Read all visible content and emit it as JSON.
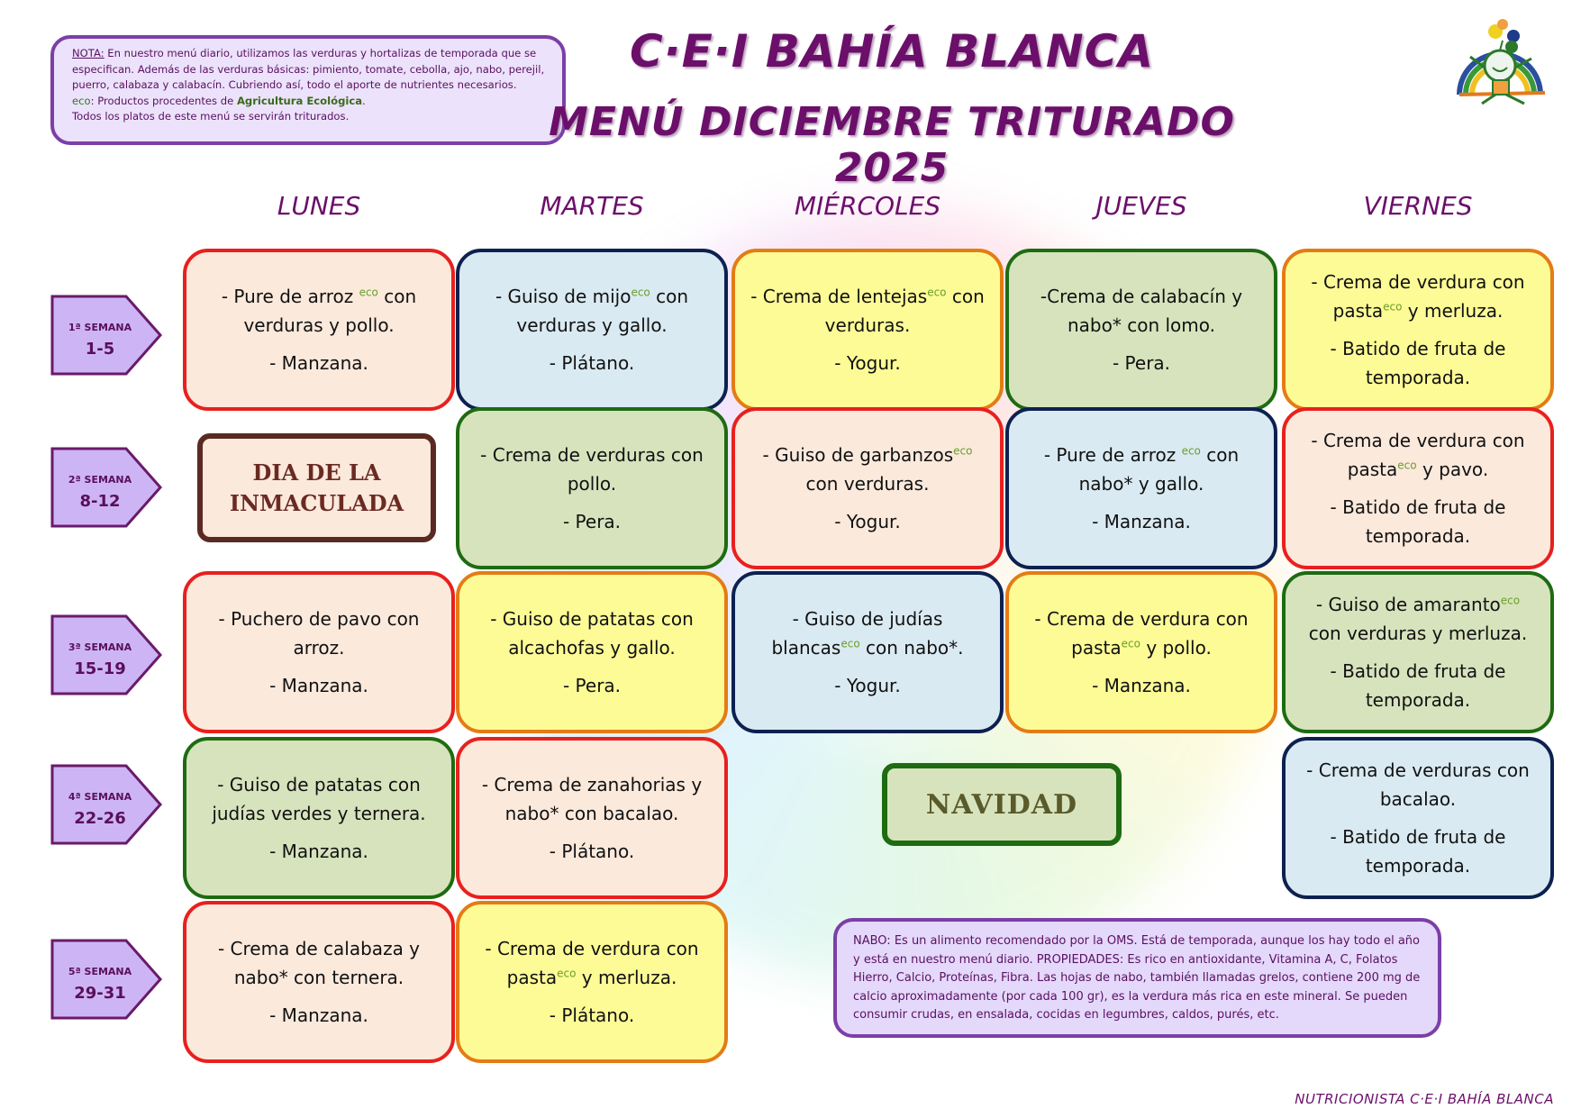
{
  "title": "C·E·I BAHÍA BLANCA",
  "subtitle": "MENÚ DICIEMBRE TRITURADO 2025",
  "note": {
    "label": "NOTA:",
    "text": " En nuestro menú diario, utilizamos las verduras y hortalizas de temporada que se especifican. Además de las verduras básicas: pimiento, tomate, cebolla, ajo, nabo, perejil, puerro, calabaza y calabacín. Cubriendo así, todo el aporte de nutrientes necesarios.",
    "eco_label": "eco",
    "eco_text": ": Productos procedentes de ",
    "eco_bold": "Agricultura Ecológica",
    "eco_end": ".",
    "last": "Todos los platos de este menú se servirán triturados."
  },
  "days": [
    "LUNES",
    "MARTES",
    "MIÉRCOLES",
    "JUEVES",
    "VIERNES"
  ],
  "weeks": [
    {
      "label": "1ª SEMANA",
      "range": "1-5"
    },
    {
      "label": "2ª SEMANA",
      "range": "8-12"
    },
    {
      "label": "3ª SEMANA",
      "range": "15-19"
    },
    {
      "label": "4ª SEMANA",
      "range": "22-26"
    },
    {
      "label": "5ª SEMANA",
      "range": "29-31"
    }
  ],
  "colors": {
    "peach": "#fbe9dc",
    "red_border": "#e8201e",
    "blue": "#daeaf2",
    "navy_border": "#0d2150",
    "yellow": "#fdfb96",
    "orange_border": "#e47c14",
    "green": "#d7e3bd",
    "green_border": "#1e6b12",
    "title_purple": "#6b0f6b"
  },
  "cells": [
    {
      "week": 0,
      "day": 0,
      "style": "peach",
      "paragraphs": [
        [
          "- Pure de arroz ",
          {
            "sup": "eco"
          },
          " con verduras y pollo."
        ],
        [
          "- Manzana."
        ]
      ]
    },
    {
      "week": 0,
      "day": 1,
      "style": "blue",
      "paragraphs": [
        [
          "- Guiso de mijo",
          {
            "sup": "eco"
          },
          " con verduras y gallo."
        ],
        [
          "- Plátano."
        ]
      ]
    },
    {
      "week": 0,
      "day": 2,
      "style": "yellow",
      "paragraphs": [
        [
          "- Crema de lentejas",
          {
            "sup": "eco"
          },
          " con verduras."
        ],
        [
          "- Yogur."
        ]
      ]
    },
    {
      "week": 0,
      "day": 3,
      "style": "gr",
      "paragraphs": [
        [
          "-Crema de calabacín y nabo* con lomo."
        ],
        [
          "- Pera."
        ]
      ]
    },
    {
      "week": 0,
      "day": 4,
      "style": "yellow",
      "paragraphs": [
        [
          "- Crema de verdura con pasta",
          {
            "sup": "eco"
          },
          " y merluza."
        ],
        [
          "- Batido de fruta de temporada."
        ]
      ]
    },
    {
      "week": 1,
      "day": 1,
      "style": "gr",
      "paragraphs": [
        [
          "- Crema de verduras con pollo."
        ],
        [
          "- Pera."
        ]
      ]
    },
    {
      "week": 1,
      "day": 2,
      "style": "peach",
      "paragraphs": [
        [
          "- Guiso de garbanzos",
          {
            "sup": "eco"
          },
          " con verduras."
        ],
        [
          "- Yogur."
        ]
      ]
    },
    {
      "week": 1,
      "day": 3,
      "style": "blue",
      "paragraphs": [
        [
          "- Pure de arroz ",
          {
            "sup": "eco"
          },
          " con nabo* y gallo."
        ],
        [
          "- Manzana."
        ]
      ]
    },
    {
      "week": 1,
      "day": 4,
      "style": "peach",
      "paragraphs": [
        [
          "- Crema de verdura con pasta",
          {
            "sup": "eco"
          },
          " y pavo."
        ],
        [
          "- Batido de fruta de temporada."
        ]
      ]
    },
    {
      "week": 2,
      "day": 0,
      "style": "peach",
      "paragraphs": [
        [
          "- Puchero de pavo con arroz."
        ],
        [
          "- Manzana."
        ]
      ]
    },
    {
      "week": 2,
      "day": 1,
      "style": "yellow",
      "paragraphs": [
        [
          "- Guiso de patatas con alcachofas y gallo."
        ],
        [
          "- Pera."
        ]
      ]
    },
    {
      "week": 2,
      "day": 2,
      "style": "blue",
      "paragraphs": [
        [
          "- Guiso de judías blancas",
          {
            "sup": "eco"
          },
          " con nabo*."
        ],
        [
          "- Yogur."
        ]
      ]
    },
    {
      "week": 2,
      "day": 3,
      "style": "yellow",
      "paragraphs": [
        [
          "- Crema de verdura con pasta",
          {
            "sup": "eco"
          },
          " y pollo."
        ],
        [
          "- Manzana."
        ]
      ]
    },
    {
      "week": 2,
      "day": 4,
      "style": "gr",
      "paragraphs": [
        [
          "- Guiso de amaranto",
          {
            "sup": "eco"
          },
          " con verduras y merluza."
        ],
        [
          "- Batido de fruta de temporada."
        ]
      ]
    },
    {
      "week": 3,
      "day": 0,
      "style": "gr",
      "paragraphs": [
        [
          "- Guiso de patatas con judías verdes y ternera."
        ],
        [
          "- Manzana."
        ]
      ]
    },
    {
      "week": 3,
      "day": 1,
      "style": "peach",
      "paragraphs": [
        [
          "- Crema de zanahorias  y nabo* con bacalao."
        ],
        [
          "- Plátano."
        ]
      ]
    },
    {
      "week": 3,
      "day": 4,
      "style": "blue",
      "paragraphs": [
        [
          "- Crema de verduras con bacalao."
        ],
        [
          "- Batido de fruta de temporada."
        ]
      ]
    },
    {
      "week": 4,
      "day": 0,
      "style": "peach",
      "paragraphs": [
        [
          "- Crema de calabaza y nabo* con ternera."
        ],
        [
          "- Manzana."
        ]
      ]
    },
    {
      "week": 4,
      "day": 1,
      "style": "yellow",
      "paragraphs": [
        [
          "- Crema de verdura con pasta",
          {
            "sup": "eco"
          },
          " y merluza."
        ],
        [
          "- Plátano."
        ]
      ]
    }
  ],
  "holidays": {
    "inmaculada": "DIA DE LA INMACULADA",
    "navidad": "NAVIDAD"
  },
  "nabo_note": "NABO: Es un alimento recomendado por la OMS. Está de temporada, aunque los hay todo el año y está en nuestro menú diario. PROPIEDADES: Es rico en antioxidante, Vitamina A, C, Folatos Hierro, Calcio, Proteínas, Fibra. Las hojas de nabo, también llamadas grelos, contiene 200 mg de calcio aproximadamente (por cada 100 gr), es la verdura más rica en este mineral. Se pueden consumir crudas, en ensalada, cocidas en legumbres, caldos, purés, etc.",
  "footer": "NUTRICIONISTA C·E·I BAHÍA BLANCA",
  "logo": {
    "icon": "smiling-child-with-rainbow-and-balloons-logo"
  }
}
